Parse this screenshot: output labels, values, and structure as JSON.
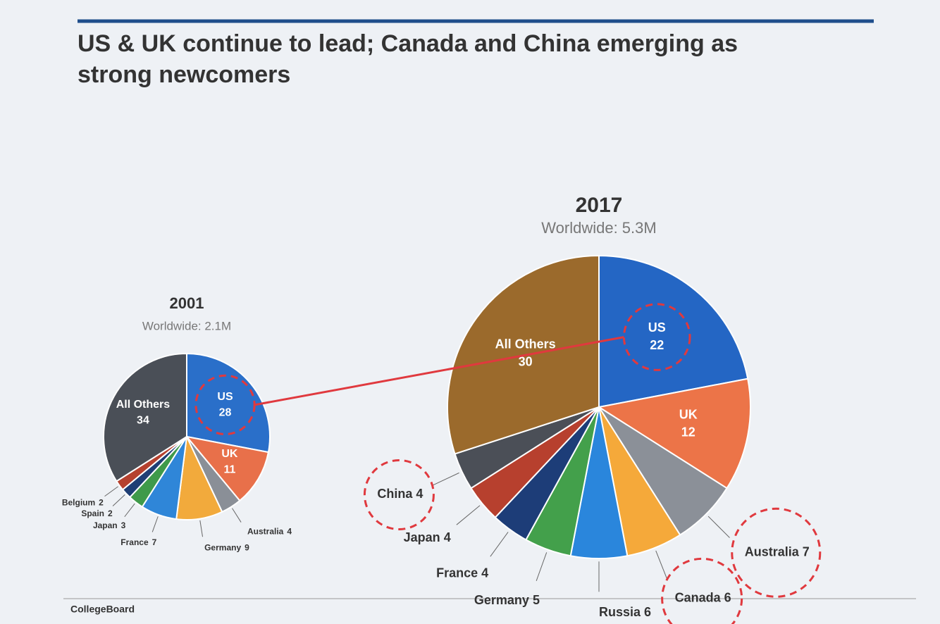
{
  "title": "US & UK continue to lead; Canada and China emerging as strong newcomers",
  "source": "CollegeBoard",
  "chart_data": [
    {
      "type": "pie",
      "title": "2001",
      "subtitle": "Worldwide: 2.1M",
      "categories": [
        "US",
        "UK",
        "Australia",
        "Germany",
        "France",
        "Japan",
        "Spain",
        "Belgium",
        "All Others"
      ],
      "values": [
        28,
        11,
        4,
        9,
        7,
        3,
        2,
        2,
        34
      ],
      "colors": [
        "#2a6fc9",
        "#e8704a",
        "#8a8f97",
        "#f2aa3c",
        "#2f86d8",
        "#3f9a4a",
        "#1f3e75",
        "#b5412f",
        "#4a4f57"
      ],
      "highlight": [
        0
      ]
    },
    {
      "type": "pie",
      "title": "2017",
      "subtitle": "Worldwide: 5.3M",
      "categories": [
        "US",
        "UK",
        "Australia",
        "Canada",
        "Russia",
        "Germany",
        "France",
        "Japan",
        "China",
        "All Others"
      ],
      "values": [
        22,
        12,
        7,
        6,
        6,
        5,
        4,
        4,
        4,
        30
      ],
      "colors": [
        "#2466c4",
        "#ec7448",
        "#8b9098",
        "#f5a93a",
        "#2a86dc",
        "#43a04b",
        "#1d3d78",
        "#b7402e",
        "#4b4f57",
        "#9b6a2c"
      ],
      "highlight": [
        0,
        2,
        3,
        8
      ]
    }
  ]
}
